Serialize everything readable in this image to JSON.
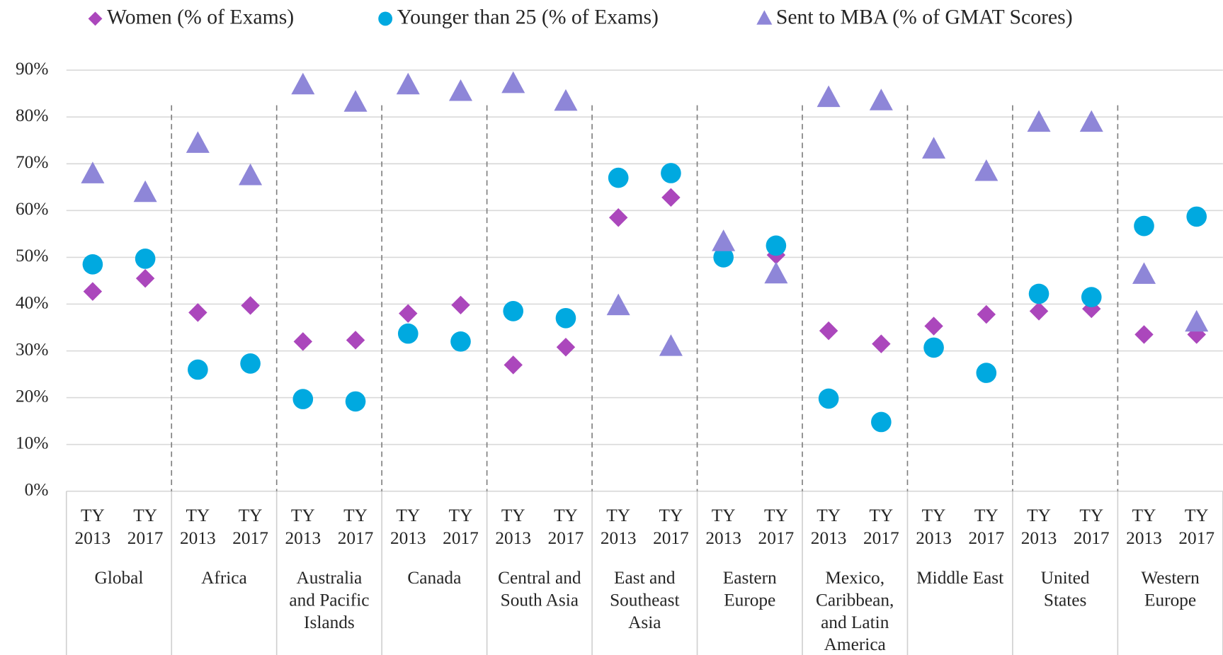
{
  "chart_data": {
    "type": "scatter",
    "categories": [
      "TY 2013",
      "TY 2017",
      "TY 2013",
      "TY 2017",
      "TY 2013",
      "TY 2017",
      "TY 2013",
      "TY 2017",
      "TY 2013",
      "TY 2017",
      "TY 2013",
      "TY 2017",
      "TY 2013",
      "TY 2017",
      "TY 2013",
      "TY 2017",
      "TY 2013",
      "TY 2017",
      "TY 2013",
      "TY 2017",
      "TY 2013",
      "TY 2017"
    ],
    "groups": [
      [
        "Global"
      ],
      [
        "Africa"
      ],
      [
        "Australia",
        "and Pacific",
        "Islands"
      ],
      [
        "Canada"
      ],
      [
        "Central and",
        "South Asia"
      ],
      [
        "East and",
        "Southeast",
        "Asia"
      ],
      [
        "Eastern",
        "Europe"
      ],
      [
        "Mexico,",
        "Caribbean,",
        "and Latin",
        "America"
      ],
      [
        "Middle East"
      ],
      [
        "United",
        "States"
      ],
      [
        "Western",
        "Europe"
      ]
    ],
    "series": [
      {
        "name": "Women (% of Exams)",
        "color": "#ab47bc",
        "marker": "diamond",
        "values": [
          42.7,
          45.5,
          38.2,
          39.7,
          32,
          32.3,
          38,
          39.8,
          27,
          30.8,
          58.5,
          62.8,
          50.2,
          50.5,
          34.3,
          31.5,
          35.3,
          37.8,
          38.5,
          39,
          33.5,
          33.5
        ]
      },
      {
        "name": "Younger than 25 (% of Exams)",
        "color": "#00a9e0",
        "marker": "circle",
        "values": [
          48.5,
          49.7,
          26,
          27.3,
          19.7,
          19.2,
          33.7,
          32,
          38.5,
          37,
          67,
          68,
          50,
          52.5,
          19.8,
          14.8,
          30.7,
          25.3,
          42.2,
          41.5,
          56.7,
          58.7
        ]
      },
      {
        "name": "Sent to MBA (% of GMAT Scores)",
        "color": "#8e86d8",
        "marker": "triangle",
        "values": [
          67.7,
          63.7,
          74.2,
          67.3,
          86.7,
          83,
          86.7,
          85.3,
          87,
          83.2,
          39.5,
          30.8,
          53.2,
          46.3,
          84,
          83.3,
          73,
          68.2,
          78.7,
          78.7,
          46.2,
          36
        ]
      }
    ],
    "ylim": [
      0,
      90
    ],
    "yticks": [
      {
        "value": 0,
        "label": "0%"
      },
      {
        "value": 10,
        "label": "10%"
      },
      {
        "value": 20,
        "label": "20%"
      },
      {
        "value": 30,
        "label": "30%"
      },
      {
        "value": 40,
        "label": "40%"
      },
      {
        "value": 50,
        "label": "50%"
      },
      {
        "value": 60,
        "label": "60%"
      },
      {
        "value": 70,
        "label": "70%"
      },
      {
        "value": 80,
        "label": "80%"
      },
      {
        "value": 90,
        "label": "90%"
      }
    ],
    "grid": true,
    "legend": "top"
  }
}
